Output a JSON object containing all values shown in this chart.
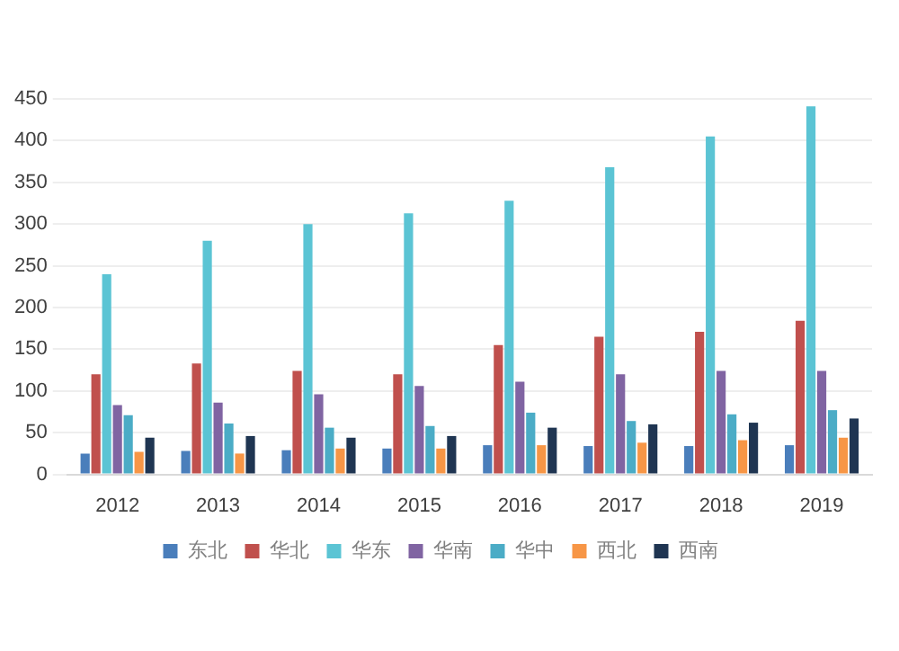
{
  "chart_data": {
    "type": "bar",
    "categories": [
      "2012",
      "2013",
      "2014",
      "2015",
      "2016",
      "2017",
      "2018",
      "2019"
    ],
    "series": [
      {
        "name": "东北",
        "color": "#4a7ebb",
        "values": [
          25,
          28,
          29,
          31,
          35,
          34,
          34,
          35
        ]
      },
      {
        "name": "华北",
        "color": "#c0504d",
        "values": [
          120,
          133,
          124,
          120,
          155,
          165,
          171,
          184
        ]
      },
      {
        "name": "华东",
        "color": "#5bc4d4",
        "values": [
          240,
          280,
          300,
          313,
          328,
          368,
          405,
          441
        ]
      },
      {
        "name": "华南",
        "color": "#8064a2",
        "values": [
          83,
          86,
          96,
          106,
          111,
          120,
          124,
          124
        ]
      },
      {
        "name": "华中",
        "color": "#4bacc6",
        "values": [
          71,
          61,
          56,
          58,
          74,
          64,
          72,
          77
        ]
      },
      {
        "name": "西北",
        "color": "#f79646",
        "values": [
          27,
          25,
          31,
          31,
          35,
          38,
          41,
          44
        ]
      },
      {
        "name": "西南",
        "color": "#1f3552",
        "values": [
          44,
          46,
          44,
          46,
          56,
          60,
          62,
          67
        ]
      }
    ],
    "ylim": [
      0,
      450
    ],
    "yticks": [
      0,
      50,
      100,
      150,
      200,
      250,
      300,
      350,
      400,
      450
    ],
    "grid": "y",
    "legend": "bottom"
  }
}
